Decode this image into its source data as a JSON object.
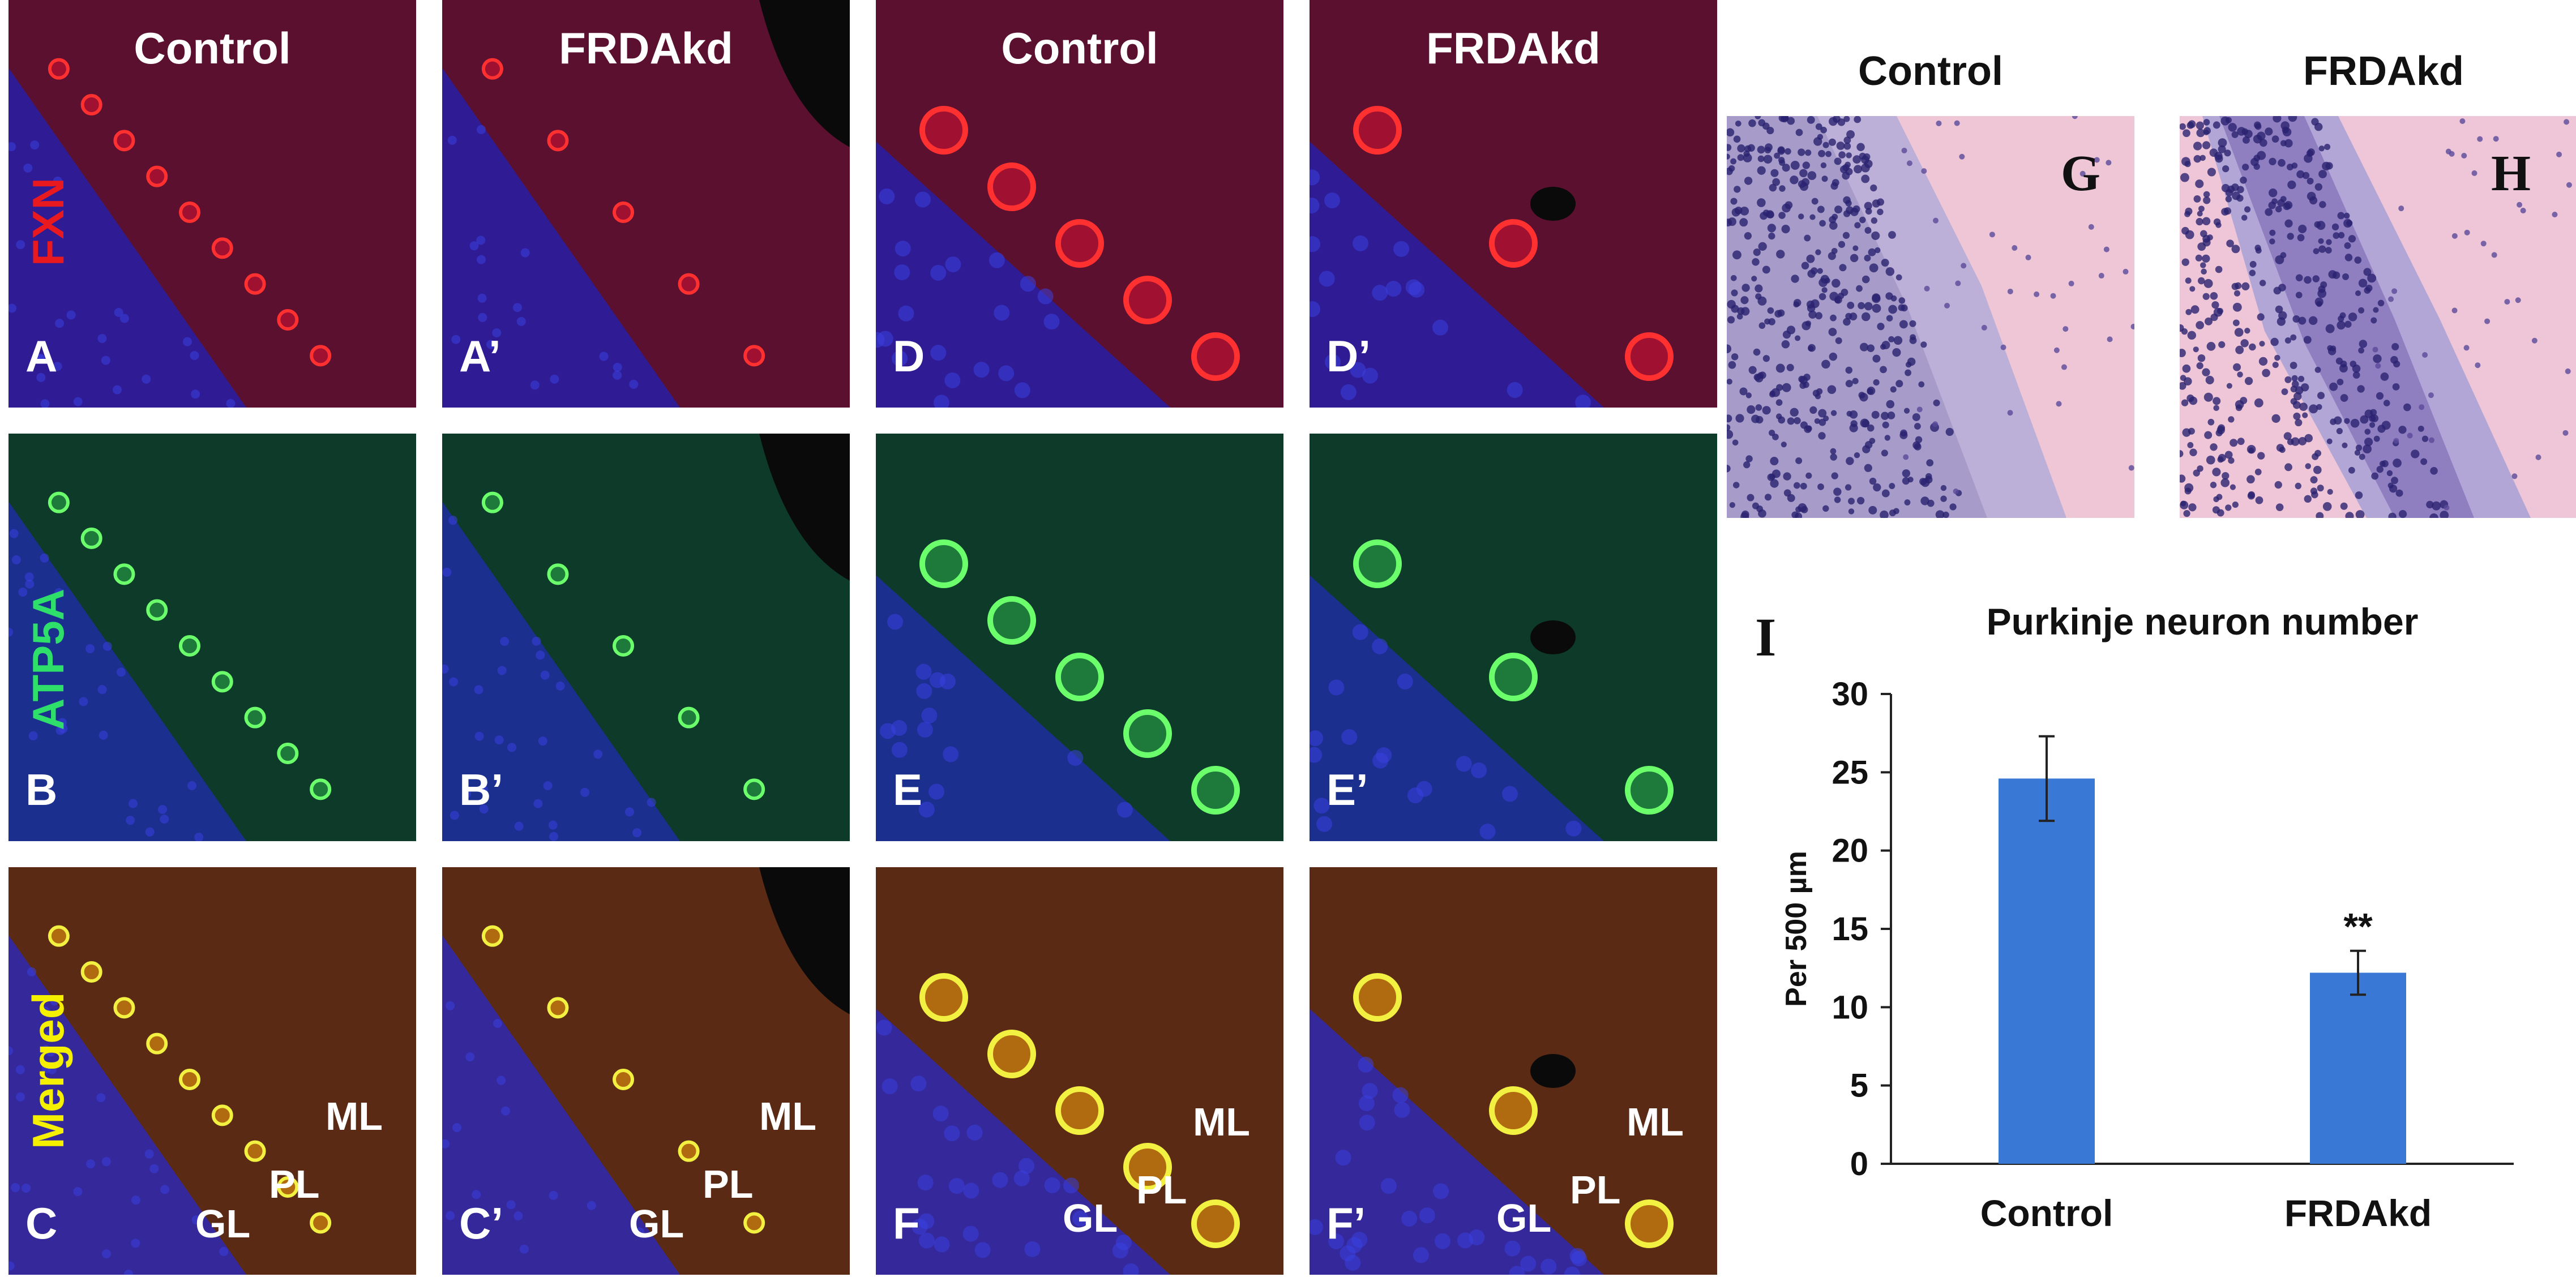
{
  "columns": [
    {
      "title": "Control",
      "letters": [
        "A",
        "B",
        "C"
      ]
    },
    {
      "title": "FRDAkd",
      "letters": [
        "A’",
        "B’",
        "C’"
      ]
    },
    {
      "title": "Control",
      "letters": [
        "D",
        "E",
        "F"
      ]
    },
    {
      "title": "FRDAkd",
      "letters": [
        "D’",
        "E’",
        "F’"
      ]
    }
  ],
  "rows": [
    {
      "label": "FXN",
      "color": "#e8191f"
    },
    {
      "label": "ATP5A",
      "color": "#2ee06a"
    },
    {
      "label": "Merged",
      "color": "#f4f000"
    }
  ],
  "layers": {
    "ml": "ML",
    "pl": "PL",
    "gl": "GL"
  },
  "he": {
    "control_title": "Control",
    "frdakd_title": "FRDAkd",
    "control_letter": "G",
    "frdakd_letter": "H"
  },
  "chart_data": {
    "type": "bar",
    "panel_letter": "I",
    "title": "Purkinje neuron number",
    "ylabel": "Per 500 µm",
    "categories": [
      "Control",
      "FRDAkd"
    ],
    "values": [
      24.6,
      12.2
    ],
    "errors": [
      2.7,
      1.4
    ],
    "ylim": [
      0,
      30
    ],
    "yticks": [
      0,
      5,
      10,
      15,
      20,
      25,
      30
    ],
    "annotations": [
      {
        "category": "FRDAkd",
        "text": "**"
      }
    ],
    "bar_color": "#3a78d6",
    "grid": false
  }
}
